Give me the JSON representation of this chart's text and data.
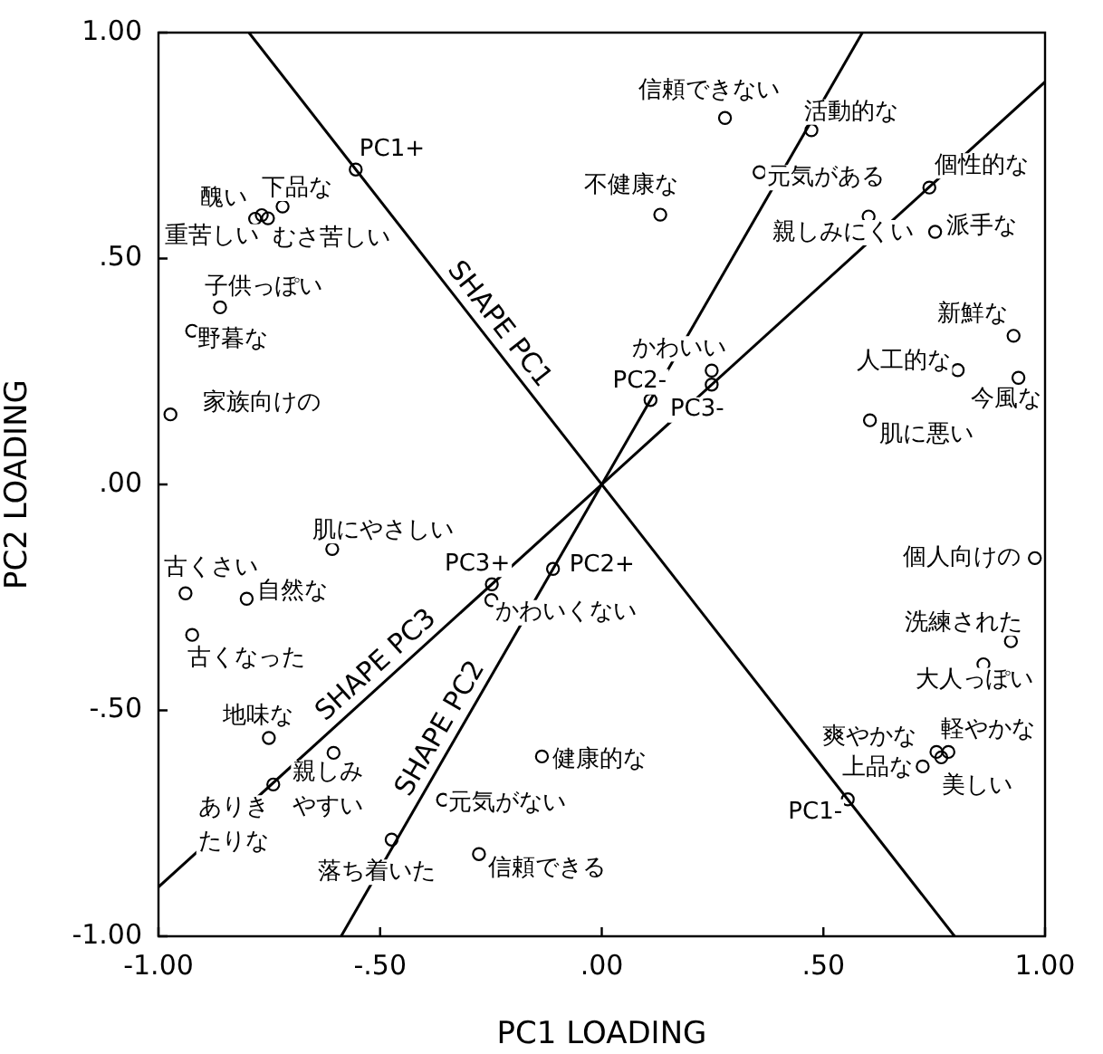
{
  "chart_data": {
    "type": "scatter",
    "xlabel": "PC1 LOADING",
    "ylabel": "PC2 LOADING",
    "xlim": [
      -1,
      1
    ],
    "ylim": [
      -1,
      1
    ],
    "xticks": [
      {
        "value": -1,
        "label": "-1.00"
      },
      {
        "value": -0.5,
        "label": "-.50"
      },
      {
        "value": 0,
        "label": ".00"
      },
      {
        "value": 0.5,
        "label": ".50"
      },
      {
        "value": 1,
        "label": "1.00"
      }
    ],
    "yticks": [
      {
        "value": -1,
        "label": "-1.00"
      },
      {
        "value": -0.5,
        "label": "-.50"
      },
      {
        "value": 0,
        "label": ".00"
      },
      {
        "value": 0.5,
        "label": ".50"
      },
      {
        "value": 1,
        "label": "1.00"
      }
    ],
    "grid": false,
    "legend": false,
    "series": [
      {
        "type": "line",
        "name": "SHAPE PC1",
        "color": "#000000",
        "marker": "none",
        "line_style": "solid",
        "x": [
          -0.796,
          0.796
        ],
        "values": [
          1,
          -1
        ]
      },
      {
        "type": "line",
        "name": "SHAPE PC2",
        "color": "#000000",
        "marker": "none",
        "line_style": "solid",
        "x": [
          -0.588,
          0.588
        ],
        "values": [
          -1,
          1
        ]
      },
      {
        "type": "line",
        "name": "SHAPE PC3",
        "color": "#000000",
        "marker": "none",
        "line_style": "solid",
        "x": [
          -1,
          1
        ],
        "values": [
          -0.891,
          0.891
        ]
      },
      {
        "color": "#000000",
        "marker": "circle",
        "x": [
          -0.555,
          -0.72,
          -0.767,
          -0.782,
          -0.753,
          -0.861,
          -0.924,
          -0.973,
          0.278,
          0.473,
          0.356,
          0.132,
          0.739,
          0.602,
          0.752,
          0.929,
          0.803,
          0.94,
          0.605,
          0.248,
          0.11,
          0.248,
          -0.608,
          -0.939,
          -0.801,
          -0.924,
          -0.248,
          -0.249,
          -0.11,
          -0.751,
          -0.605,
          -0.741,
          -0.358,
          -0.474,
          -0.277,
          -0.135,
          0.977,
          0.923,
          0.861,
          0.755,
          0.782,
          0.766,
          0.724,
          0.555
        ],
        "values": [
          0.697,
          0.615,
          0.596,
          0.588,
          0.589,
          0.392,
          0.34,
          0.155,
          0.811,
          0.784,
          0.691,
          0.597,
          0.657,
          0.593,
          0.559,
          0.329,
          0.253,
          0.236,
          0.142,
          0.252,
          0.187,
          0.221,
          -0.143,
          -0.241,
          -0.253,
          -0.333,
          -0.221,
          -0.256,
          -0.187,
          -0.561,
          -0.594,
          -0.664,
          -0.698,
          -0.786,
          -0.818,
          -0.602,
          -0.163,
          -0.347,
          -0.398,
          -0.592,
          -0.592,
          -0.604,
          -0.624,
          -0.697
        ]
      }
    ],
    "annotations": [
      {
        "text": "PC1+",
        "x": -0.555,
        "y": 0.697
      },
      {
        "text": "下品な",
        "x": -0.72,
        "y": 0.615
      },
      {
        "text": "醜い",
        "x": -0.767,
        "y": 0.596
      },
      {
        "text": "重苦しい",
        "x": -0.782,
        "y": 0.588
      },
      {
        "text": "むさ苦しい",
        "x": -0.753,
        "y": 0.589
      },
      {
        "text": "子供っぽい",
        "x": -0.861,
        "y": 0.392
      },
      {
        "text": "野暮な",
        "x": -0.924,
        "y": 0.34
      },
      {
        "text": "家族向けの",
        "x": -0.973,
        "y": 0.155
      },
      {
        "text": "信頼できない",
        "x": 0.278,
        "y": 0.811
      },
      {
        "text": "活動的な",
        "x": 0.473,
        "y": 0.784
      },
      {
        "text": "元気がある",
        "x": 0.356,
        "y": 0.691
      },
      {
        "text": "不健康な",
        "x": 0.132,
        "y": 0.597
      },
      {
        "text": "個性的な",
        "x": 0.739,
        "y": 0.657
      },
      {
        "text": "親しみにくい",
        "x": 0.602,
        "y": 0.593
      },
      {
        "text": "派手な",
        "x": 0.752,
        "y": 0.559
      },
      {
        "text": "新鮮な",
        "x": 0.929,
        "y": 0.329
      },
      {
        "text": "人工的な",
        "x": 0.803,
        "y": 0.253
      },
      {
        "text": "今風な",
        "x": 0.94,
        "y": 0.236
      },
      {
        "text": "肌に悪い",
        "x": 0.605,
        "y": 0.142
      },
      {
        "text": "かわいい",
        "x": 0.248,
        "y": 0.252
      },
      {
        "text": "PC2-",
        "x": 0.11,
        "y": 0.187
      },
      {
        "text": "PC3-",
        "x": 0.248,
        "y": 0.221
      },
      {
        "text": "肌にやさしい",
        "x": -0.608,
        "y": -0.143
      },
      {
        "text": "古くさい",
        "x": -0.939,
        "y": -0.241
      },
      {
        "text": "自然な",
        "x": -0.801,
        "y": -0.253
      },
      {
        "text": "古くなった",
        "x": -0.924,
        "y": -0.333
      },
      {
        "text": "PC3+",
        "x": -0.248,
        "y": -0.221
      },
      {
        "text": "かわいくない",
        "x": -0.249,
        "y": -0.256
      },
      {
        "text": "PC2+",
        "x": -0.11,
        "y": -0.187
      },
      {
        "text": "地味な",
        "x": -0.751,
        "y": -0.561
      },
      {
        "text": "親しみやすい",
        "x": -0.605,
        "y": -0.594
      },
      {
        "text": "ありきたりな",
        "x": -0.741,
        "y": -0.664
      },
      {
        "text": "元気がない",
        "x": -0.358,
        "y": -0.698
      },
      {
        "text": "落ち着いた",
        "x": -0.474,
        "y": -0.786
      },
      {
        "text": "信頼できる",
        "x": -0.277,
        "y": -0.818
      },
      {
        "text": "健康的な",
        "x": -0.135,
        "y": -0.602
      },
      {
        "text": "個人向けの",
        "x": 0.977,
        "y": -0.163
      },
      {
        "text": "洗練された",
        "x": 0.923,
        "y": -0.347
      },
      {
        "text": "大人っぽい",
        "x": 0.861,
        "y": -0.398
      },
      {
        "text": "爽やかな",
        "x": 0.755,
        "y": -0.592
      },
      {
        "text": "軽やかな",
        "x": 0.782,
        "y": -0.592
      },
      {
        "text": "美しい",
        "x": 0.766,
        "y": -0.604
      },
      {
        "text": "上品な",
        "x": 0.724,
        "y": -0.624
      },
      {
        "text": "PC1-",
        "x": 0.555,
        "y": -0.697
      }
    ]
  }
}
